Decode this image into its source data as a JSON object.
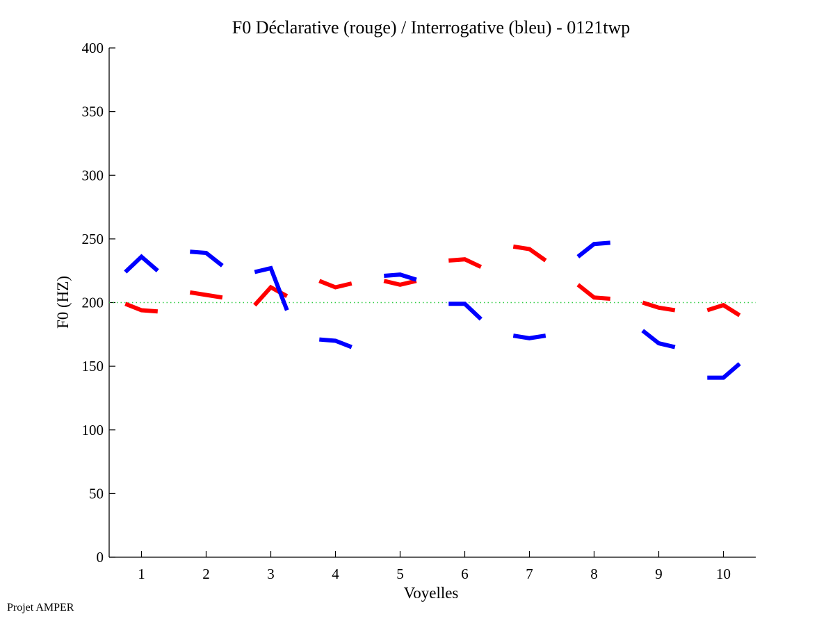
{
  "chart_data": {
    "type": "line",
    "title": "F0 Déclarative (rouge) / Interrogative (bleu) - 0121twp",
    "xlabel": "Voyelles",
    "ylabel": "F0 (HZ)",
    "xlim": [
      0.5,
      10.5
    ],
    "ylim": [
      0,
      400
    ],
    "xticks": [
      "1",
      "2",
      "3",
      "4",
      "5",
      "6",
      "7",
      "8",
      "9",
      "10"
    ],
    "yticks": [
      "0",
      "50",
      "100",
      "150",
      "200",
      "250",
      "300",
      "350",
      "400"
    ],
    "reference_line": {
      "y": 200,
      "color": "#2ecc40",
      "style": "dotted"
    },
    "series": [
      {
        "name": "Déclarative",
        "color": "#ff0000",
        "segments": [
          {
            "vowel": 1,
            "x": [
              0.75,
              1.0,
              1.25
            ],
            "y": [
              199,
              194,
              193
            ]
          },
          {
            "vowel": 2,
            "x": [
              1.75,
              2.0,
              2.25
            ],
            "y": [
              208,
              206,
              204
            ]
          },
          {
            "vowel": 3,
            "x": [
              2.75,
              3.0,
              3.25
            ],
            "y": [
              198,
              212,
              205
            ]
          },
          {
            "vowel": 4,
            "x": [
              3.75,
              4.0,
              4.25
            ],
            "y": [
              217,
              212,
              215
            ]
          },
          {
            "vowel": 5,
            "x": [
              4.75,
              5.0,
              5.25
            ],
            "y": [
              217,
              214,
              217
            ]
          },
          {
            "vowel": 6,
            "x": [
              5.75,
              6.0,
              6.25
            ],
            "y": [
              233,
              234,
              228
            ]
          },
          {
            "vowel": 7,
            "x": [
              6.75,
              7.0,
              7.25
            ],
            "y": [
              244,
              242,
              233
            ]
          },
          {
            "vowel": 8,
            "x": [
              7.75,
              8.0,
              8.25
            ],
            "y": [
              214,
              204,
              203
            ]
          },
          {
            "vowel": 9,
            "x": [
              8.75,
              9.0,
              9.25
            ],
            "y": [
              200,
              196,
              194
            ]
          },
          {
            "vowel": 10,
            "x": [
              9.75,
              10.0,
              10.25
            ],
            "y": [
              194,
              198,
              190
            ]
          }
        ]
      },
      {
        "name": "Interrogative",
        "color": "#0000ff",
        "segments": [
          {
            "vowel": 1,
            "x": [
              0.75,
              1.0,
              1.25
            ],
            "y": [
              224,
              236,
              225
            ]
          },
          {
            "vowel": 2,
            "x": [
              1.75,
              2.0,
              2.25
            ],
            "y": [
              240,
              239,
              229
            ]
          },
          {
            "vowel": 3,
            "x": [
              2.75,
              3.0,
              3.25
            ],
            "y": [
              224,
              227,
              194
            ]
          },
          {
            "vowel": 4,
            "x": [
              3.75,
              4.0,
              4.25
            ],
            "y": [
              171,
              170,
              165
            ]
          },
          {
            "vowel": 5,
            "x": [
              4.75,
              5.0,
              5.25
            ],
            "y": [
              221,
              222,
              218
            ]
          },
          {
            "vowel": 6,
            "x": [
              5.75,
              6.0,
              6.25
            ],
            "y": [
              199,
              199,
              187
            ]
          },
          {
            "vowel": 7,
            "x": [
              6.75,
              7.0,
              7.25
            ],
            "y": [
              174,
              172,
              174
            ]
          },
          {
            "vowel": 8,
            "x": [
              7.75,
              8.0,
              8.25
            ],
            "y": [
              236,
              246,
              247
            ]
          },
          {
            "vowel": 9,
            "x": [
              8.75,
              9.0,
              9.25
            ],
            "y": [
              178,
              168,
              165
            ]
          },
          {
            "vowel": 10,
            "x": [
              9.75,
              10.0,
              10.25
            ],
            "y": [
              141,
              141,
              152
            ]
          }
        ]
      }
    ],
    "grid": false
  },
  "footer": {
    "text": "Projet AMPER"
  }
}
